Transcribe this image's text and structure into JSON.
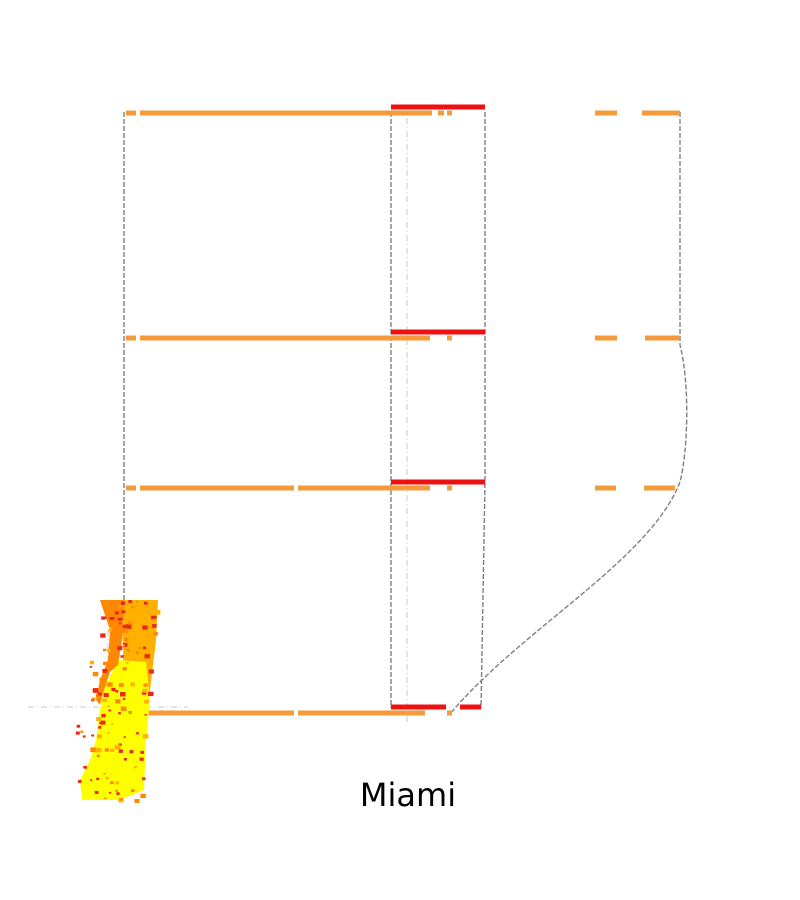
{
  "map": {
    "city_label": "Miami",
    "colors": {
      "background": "#ffffff",
      "lane_orange": "#f59a3a",
      "lane_red": "#ee1111",
      "outline_gray": "#808080",
      "guide_gray": "#c8c8c8",
      "heat_yellow": "#ffff00",
      "heat_gold": "#ffb000",
      "heat_orange": "#ff8800",
      "heat_red": "#e82a1e"
    }
  }
}
